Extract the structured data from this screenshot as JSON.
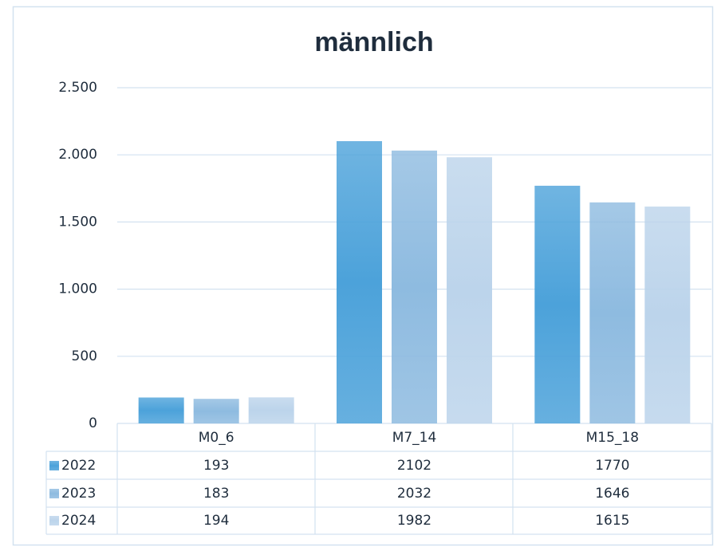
{
  "chart_data": {
    "type": "bar",
    "title": "männlich",
    "categories": [
      "M0_6",
      "M7_14",
      "M15_18"
    ],
    "series": [
      {
        "name": "2022",
        "color": "#4ca2da",
        "values": [
          193,
          2102,
          1770
        ]
      },
      {
        "name": "2023",
        "color": "#8ebbe0",
        "values": [
          183,
          2032,
          1646
        ]
      },
      {
        "name": "2024",
        "color": "#bcd4eb",
        "values": [
          194,
          1982,
          1615
        ]
      }
    ],
    "ylim": [
      0,
      2500
    ],
    "yticks": [
      0,
      500,
      {
        "value": 1000,
        "label": "1.000"
      },
      {
        "value": 1500,
        "label": "1.500"
      },
      {
        "value": 2000,
        "label": "2.000"
      },
      {
        "value": 2500,
        "label": "2.500"
      }
    ],
    "grid": true,
    "data_table": true
  }
}
